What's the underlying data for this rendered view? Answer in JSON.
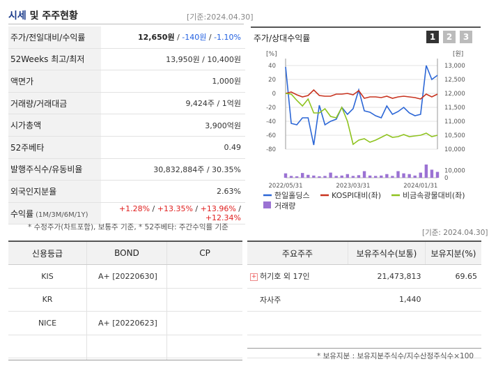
{
  "header": {
    "title_main": "시세",
    "title_rest": " 및 주주현황",
    "date": "[기준:2024.04.30]"
  },
  "price_table": [
    {
      "label": "주가/전일대비/수익률",
      "parts": [
        {
          "t": "12,650원",
          "c": "bold"
        },
        {
          "t": " / ",
          "c": ""
        },
        {
          "t": "-140원",
          "c": "neg"
        },
        {
          "t": " / ",
          "c": ""
        },
        {
          "t": "-1.10%",
          "c": "neg"
        }
      ]
    },
    {
      "label": "52Weeks 최고/최저",
      "parts": [
        {
          "t": "13,950원 / 10,400원",
          "c": ""
        }
      ]
    },
    {
      "label": "액면가",
      "parts": [
        {
          "t": "1,000원",
          "c": ""
        }
      ]
    },
    {
      "label": "거래량/거래대금",
      "parts": [
        {
          "t": "9,424주 / 1억원",
          "c": ""
        }
      ]
    },
    {
      "label": "시가총액",
      "parts": [
        {
          "t": "3,900억원",
          "c": ""
        }
      ]
    },
    {
      "label": "52주베타",
      "parts": [
        {
          "t": "0.49",
          "c": ""
        }
      ]
    },
    {
      "label": "발행주식수/유동비율",
      "parts": [
        {
          "t": "30,832,884주 / 30.35%",
          "c": ""
        }
      ]
    },
    {
      "label": "외국인지분율",
      "parts": [
        {
          "t": "2.63%",
          "c": ""
        }
      ]
    },
    {
      "label": "수익률",
      "sub": "(1M/3M/6M/1Y)",
      "parts": [
        {
          "t": "+1.28%",
          "c": "pos"
        },
        {
          "t": " / ",
          "c": ""
        },
        {
          "t": "+13.35%",
          "c": "pos"
        },
        {
          "t": " / ",
          "c": ""
        },
        {
          "t": "+13.96%",
          "c": "pos"
        },
        {
          "t": " / ",
          "c": ""
        },
        {
          "t": "+12.34%",
          "c": "pos"
        }
      ]
    }
  ],
  "price_note": "* 수정주가(차트포함), 보통주 기준, * 52주베타: 주간수익률 기준",
  "chart": {
    "title": "주가/상대수익률",
    "pages": [
      "1",
      "2",
      "3"
    ],
    "left_unit": "[%]",
    "right_unit": "[원]",
    "legend": [
      "한일홀딩스",
      "KOSPI대비(좌)",
      "비금속광물대비(좌)",
      "거래량"
    ]
  },
  "chart_data": {
    "type": "line",
    "title": "주가/상대수익률",
    "x": [
      "2022/05/31",
      "",
      "",
      "",
      "",
      "",
      "",
      "",
      "",
      "",
      "",
      "",
      "2023/03/31",
      "",
      "",
      "",
      "",
      "",
      "",
      "",
      "",
      "",
      "",
      "",
      "2024/01/31",
      "",
      "",
      ""
    ],
    "x_tick_labels": [
      "2022/05/31",
      "2023/03/31",
      "2024/01/31"
    ],
    "y_left": {
      "label": "[%]",
      "ylim": [
        -80,
        40
      ],
      "ticks": [
        40,
        20,
        0,
        -20,
        -40,
        -60,
        -80
      ]
    },
    "y_right": {
      "label": "[원]",
      "ylim": [
        10000,
        13000
      ],
      "ticks": [
        13000,
        12500,
        12000,
        11500,
        11000,
        10500,
        10000
      ]
    },
    "y_volume": {
      "ticks": [
        10000,
        0
      ]
    },
    "series": [
      {
        "name": "한일홀딩스",
        "axis": "left",
        "color": "#2b66d6",
        "values": [
          38,
          -43,
          -45,
          -35,
          -35,
          -74,
          -17,
          -45,
          -40,
          -37,
          -20,
          -30,
          -22,
          5,
          -25,
          -27,
          -32,
          -35,
          -18,
          -30,
          -26,
          -20,
          -28,
          -32,
          -30,
          40,
          20,
          26
        ]
      },
      {
        "name": "KOSPI대비(좌)",
        "axis": "left",
        "color": "#c8331f",
        "values": [
          0,
          2,
          -2,
          -5,
          -3,
          5,
          -3,
          -4,
          -4,
          -1,
          -1,
          0,
          -2,
          4,
          -7,
          -5,
          -5,
          -6,
          -4,
          -7,
          -5,
          -4,
          -5,
          -6,
          -8,
          -1,
          -5,
          -1
        ]
      },
      {
        "name": "비금속광물대비(좌)",
        "axis": "left",
        "color": "#8fc31f",
        "values": [
          0,
          -1,
          -10,
          -18,
          -8,
          -28,
          -28,
          -22,
          -33,
          -35,
          -20,
          -40,
          -73,
          -67,
          -65,
          -70,
          -67,
          -63,
          -59,
          -63,
          -62,
          -59,
          -62,
          -61,
          -60,
          -57,
          -62,
          -60
        ]
      },
      {
        "name": "거래량",
        "axis": "volume",
        "type": "bar",
        "color": "#9b72d3",
        "values": [
          6000,
          2500,
          2000,
          6500,
          4000,
          3000,
          2000,
          2500,
          7000,
          2500,
          3000,
          5000,
          2500,
          3500,
          9000,
          3000,
          2500,
          3000,
          5000,
          2500,
          9000,
          6000,
          5000,
          3000,
          7000,
          18000,
          11000,
          8000
        ]
      }
    ]
  },
  "right_date": "[기준: 2024.04.30]",
  "bond_table": {
    "headers": [
      "신용등급",
      "BOND",
      "CP"
    ],
    "rows": [
      [
        "KIS",
        "A+  [20220630]",
        ""
      ],
      [
        "KR",
        "",
        ""
      ],
      [
        "NICE",
        "A+  [20220623]",
        ""
      ],
      [
        "",
        "",
        ""
      ]
    ]
  },
  "shareholder_table": {
    "headers": [
      "주요주주",
      "보유주식수(보통)",
      "보유지분(%)"
    ],
    "rows": [
      {
        "name": "허기호 외 17인",
        "shares": "21,473,813",
        "pct": "69.65",
        "expand": true
      },
      {
        "name": "자사주",
        "shares": "1,440",
        "pct": "",
        "expand": false
      }
    ]
  },
  "shareholder_note": "* 보유지분 : 보유지분주식수/지수산정주식수×100",
  "colors": {
    "accent": "#1a3a8a",
    "negative": "#1f5ee0",
    "positive": "#e0201f"
  }
}
